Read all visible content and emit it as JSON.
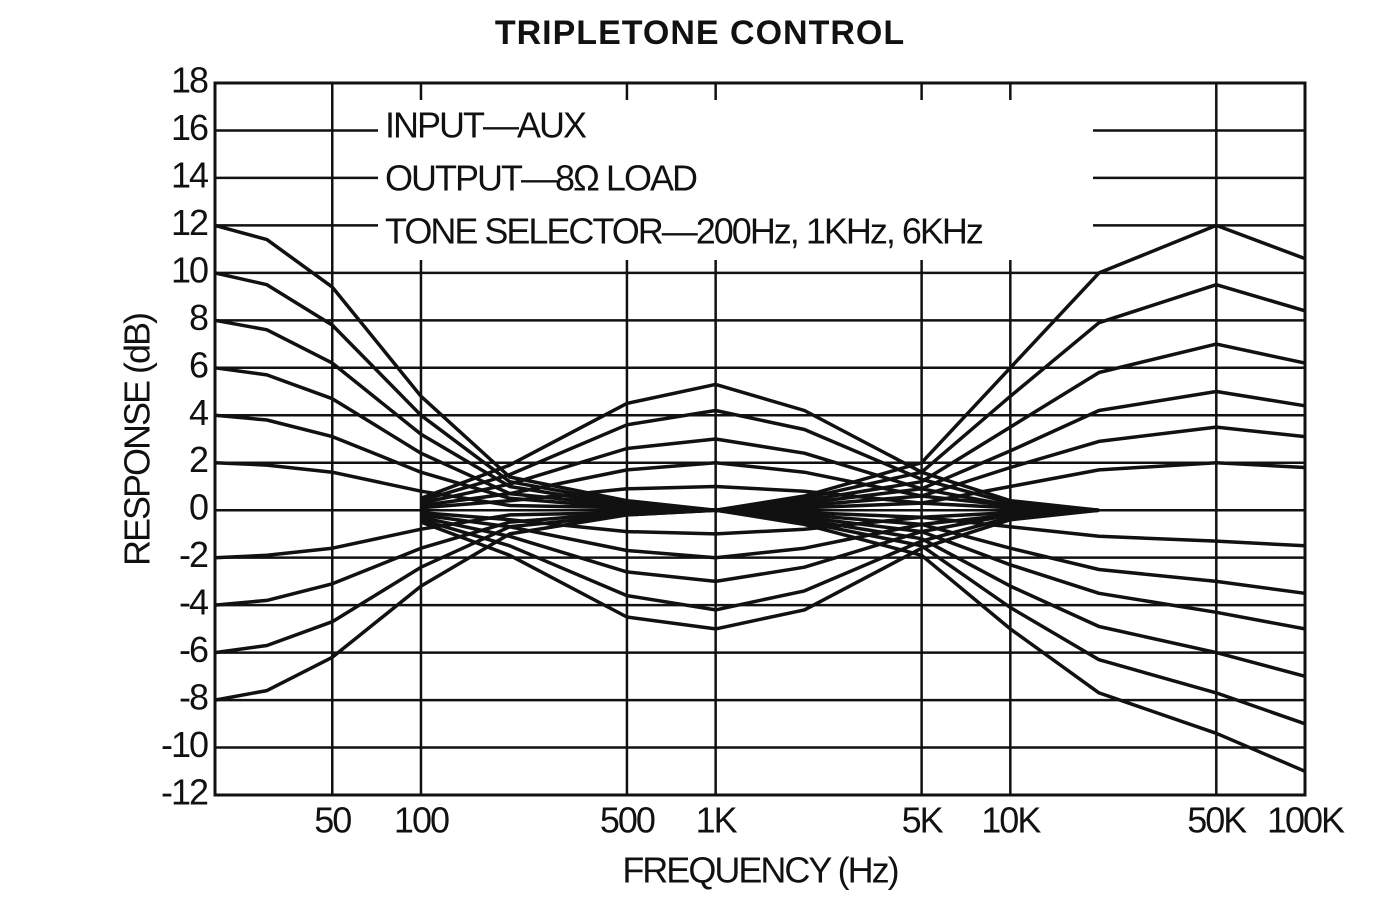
{
  "chart_data": {
    "type": "line",
    "title": "TRIPLETONE CONTROL",
    "annotations": [
      "INPUT—AUX",
      "OUTPUT—8Ω LOAD",
      "TONE SELECTOR—200Hz, 1KHz, 6KHz"
    ],
    "xlabel": "FREQUENCY (Hz)",
    "ylabel": "RESPONSE (dB)",
    "xscale": "log",
    "grid": true,
    "color": "#111111",
    "xlim": [
      20,
      100000
    ],
    "ylim": [
      -12,
      18
    ],
    "xticks": [
      50,
      100,
      500,
      {
        "value": 1000,
        "label": "1K"
      },
      {
        "value": 5000,
        "label": "5K"
      },
      {
        "value": 10000,
        "label": "10K"
      },
      {
        "value": 50000,
        "label": "50K"
      },
      {
        "value": 100000,
        "label": "100K"
      }
    ],
    "yticks": [
      -12,
      -10,
      -8,
      -6,
      -4,
      -2,
      0,
      2,
      4,
      6,
      8,
      10,
      12,
      14,
      16,
      18
    ],
    "x": [
      20,
      30,
      50,
      100,
      200,
      500,
      1000,
      2000,
      5000,
      10000,
      20000,
      50000,
      100000
    ],
    "series": [
      {
        "values": [
          12,
          11.4,
          9.4,
          4.8,
          1.4,
          0.4,
          0,
          null,
          null,
          null,
          null,
          null,
          null
        ]
      },
      {
        "values": [
          10,
          9.5,
          7.8,
          4,
          1.2,
          0.3,
          0,
          null,
          null,
          null,
          null,
          null,
          null
        ]
      },
      {
        "values": [
          8,
          7.6,
          6.2,
          3.2,
          1,
          0.2,
          0,
          null,
          null,
          null,
          null,
          null,
          null
        ]
      },
      {
        "values": [
          6,
          5.7,
          4.7,
          2.4,
          0.7,
          0.2,
          0,
          null,
          null,
          null,
          null,
          null,
          null
        ]
      },
      {
        "values": [
          4,
          3.8,
          3.1,
          1.6,
          0.5,
          0.1,
          0,
          null,
          null,
          null,
          null,
          null,
          null
        ]
      },
      {
        "values": [
          2,
          1.9,
          1.6,
          0.8,
          0.2,
          0.1,
          0,
          null,
          null,
          null,
          null,
          null,
          null
        ]
      },
      {
        "values": [
          -2,
          -1.9,
          -1.6,
          -0.8,
          -0.2,
          -0.1,
          0,
          null,
          null,
          null,
          null,
          null,
          null
        ]
      },
      {
        "values": [
          -4,
          -3.8,
          -3.1,
          -1.6,
          -0.5,
          -0.1,
          0,
          null,
          null,
          null,
          null,
          null,
          null
        ]
      },
      {
        "values": [
          -6,
          -5.7,
          -4.7,
          -2.4,
          -0.7,
          -0.2,
          0,
          null,
          null,
          null,
          null,
          null,
          null
        ]
      },
      {
        "values": [
          -8,
          -7.6,
          -6.2,
          -3.2,
          -1,
          -0.2,
          0,
          null,
          null,
          null,
          null,
          null,
          null
        ]
      },
      {
        "values": [
          null,
          null,
          null,
          0.5,
          1.9,
          4.5,
          5.3,
          4.2,
          1.6,
          0.4,
          0,
          null,
          null
        ]
      },
      {
        "values": [
          null,
          null,
          null,
          0.4,
          1.5,
          3.6,
          4.2,
          3.4,
          1.3,
          0.3,
          0,
          null,
          null
        ]
      },
      {
        "values": [
          null,
          null,
          null,
          0.3,
          1.1,
          2.6,
          3,
          2.4,
          0.9,
          0.2,
          0,
          null,
          null
        ]
      },
      {
        "values": [
          null,
          null,
          null,
          0.2,
          0.7,
          1.7,
          2,
          1.6,
          0.6,
          0.2,
          0,
          null,
          null
        ]
      },
      {
        "values": [
          null,
          null,
          null,
          0.1,
          0.4,
          0.9,
          1,
          0.8,
          0.3,
          0.1,
          0,
          null,
          null
        ]
      },
      {
        "values": [
          null,
          null,
          null,
          -0.1,
          -0.4,
          -0.9,
          -1,
          -0.8,
          -0.3,
          -0.1,
          0,
          null,
          null
        ]
      },
      {
        "values": [
          null,
          null,
          null,
          -0.2,
          -0.7,
          -1.7,
          -2,
          -1.6,
          -0.6,
          -0.2,
          0,
          null,
          null
        ]
      },
      {
        "values": [
          null,
          null,
          null,
          -0.3,
          -1.1,
          -2.6,
          -3,
          -2.4,
          -0.9,
          -0.2,
          0,
          null,
          null
        ]
      },
      {
        "values": [
          null,
          null,
          null,
          -0.4,
          -1.5,
          -3.6,
          -4.2,
          -3.4,
          -1.3,
          -0.3,
          0,
          null,
          null
        ]
      },
      {
        "values": [
          null,
          null,
          null,
          -0.5,
          -1.9,
          -4.5,
          -5,
          -4.2,
          -1.6,
          -0.4,
          0,
          null,
          null
        ]
      },
      {
        "values": [
          null,
          null,
          null,
          null,
          null,
          null,
          0,
          0.6,
          2,
          6,
          10,
          12,
          10.6
        ]
      },
      {
        "values": [
          null,
          null,
          null,
          null,
          null,
          null,
          0,
          0.5,
          1.6,
          4.8,
          7.9,
          9.5,
          8.4
        ]
      },
      {
        "values": [
          null,
          null,
          null,
          null,
          null,
          null,
          0,
          0.4,
          1.2,
          3.5,
          5.8,
          7,
          6.2
        ]
      },
      {
        "values": [
          null,
          null,
          null,
          null,
          null,
          null,
          0,
          0.3,
          0.9,
          2.5,
          4.2,
          5,
          4.4
        ]
      },
      {
        "values": [
          null,
          null,
          null,
          null,
          null,
          null,
          0,
          0.2,
          0.6,
          1.8,
          2.9,
          3.5,
          3.1
        ]
      },
      {
        "values": [
          null,
          null,
          null,
          null,
          null,
          null,
          0,
          0.1,
          0.3,
          1,
          1.7,
          2,
          1.8
        ]
      },
      {
        "values": [
          null,
          null,
          null,
          null,
          null,
          null,
          0,
          -0.1,
          -0.3,
          -0.7,
          -1.1,
          -1.3,
          -1.5
        ]
      },
      {
        "values": [
          null,
          null,
          null,
          null,
          null,
          null,
          0,
          -0.2,
          -0.6,
          -1.6,
          -2.5,
          -3,
          -3.5
        ]
      },
      {
        "values": [
          null,
          null,
          null,
          null,
          null,
          null,
          0,
          -0.3,
          -0.9,
          -2.3,
          -3.5,
          -4.3,
          -5
        ]
      },
      {
        "values": [
          null,
          null,
          null,
          null,
          null,
          null,
          0,
          -0.4,
          -1.2,
          -3.2,
          -4.9,
          -6,
          -7
        ]
      },
      {
        "values": [
          null,
          null,
          null,
          null,
          null,
          null,
          0,
          -0.5,
          -1.5,
          -4.1,
          -6.3,
          -7.7,
          -9
        ]
      },
      {
        "values": [
          null,
          null,
          null,
          null,
          null,
          null,
          0,
          -0.6,
          -1.9,
          -5,
          -7.7,
          -9.4,
          -11
        ]
      }
    ]
  }
}
